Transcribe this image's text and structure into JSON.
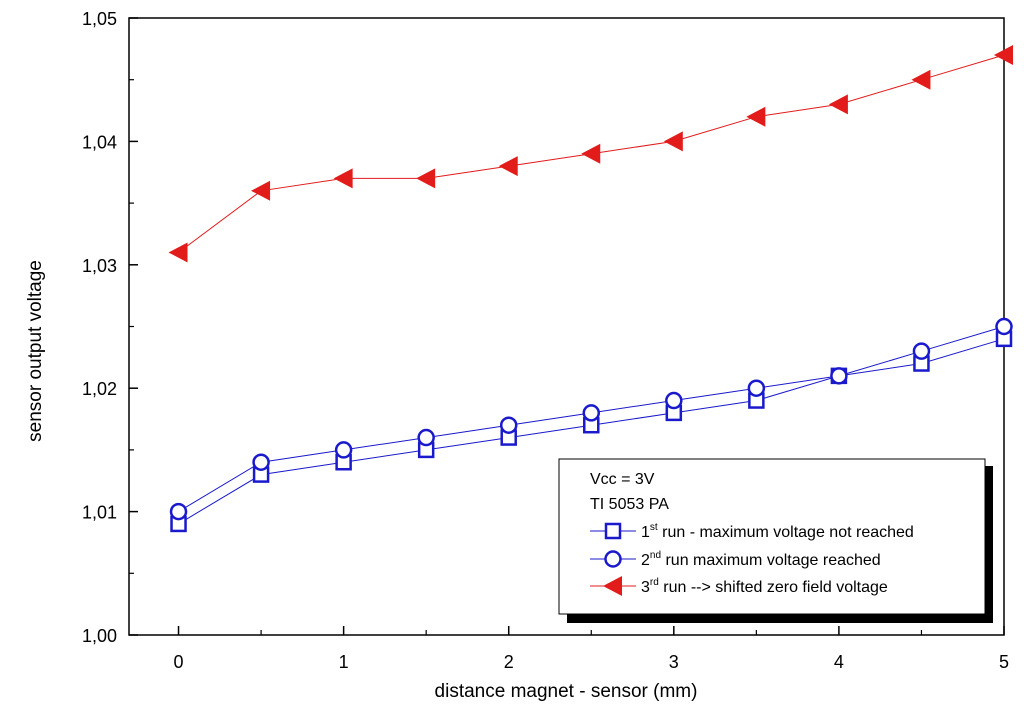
{
  "chart_data": {
    "type": "line",
    "xlabel": "distance magnet - sensor (mm)",
    "ylabel": "sensor output voltage",
    "xlim": [
      -0.3,
      5
    ],
    "ylim": [
      1.0,
      1.05
    ],
    "x_ticks": [
      0,
      1,
      2,
      3,
      4,
      5
    ],
    "x_tick_labels": [
      "0",
      "1",
      "2",
      "3",
      "4",
      "5"
    ],
    "y_ticks": [
      1.0,
      1.01,
      1.02,
      1.03,
      1.04,
      1.05
    ],
    "y_tick_labels": [
      "1,00",
      "1,01",
      "1,02",
      "1,03",
      "1,04",
      "1,05"
    ],
    "grid": false,
    "legend_position": "bottom-right",
    "legend": {
      "header_lines": [
        "Vcc = 3V",
        "TI 5053 PA"
      ],
      "entries": [
        {
          "pre": "1",
          "sup": "st",
          "post": " run - maximum voltage not reached"
        },
        {
          "pre": "2",
          "sup": "nd",
          "post": " run maximum voltage reached"
        },
        {
          "pre": "3",
          "sup": "rd",
          "post": " run --> shifted zero field voltage"
        }
      ]
    },
    "x": [
      0,
      0.5,
      1,
      1.5,
      2,
      2.5,
      3,
      3.5,
      4,
      4.5,
      5
    ],
    "series": [
      {
        "marker": "square-open",
        "color": "#1a1acc",
        "values": [
          1.009,
          1.013,
          1.014,
          1.015,
          1.016,
          1.017,
          1.018,
          1.019,
          1.021,
          1.022,
          1.024
        ]
      },
      {
        "marker": "circle-open",
        "color": "#1a1acc",
        "values": [
          1.01,
          1.014,
          1.015,
          1.016,
          1.017,
          1.018,
          1.019,
          1.02,
          1.021,
          1.023,
          1.025
        ]
      },
      {
        "marker": "triangle-left-filled",
        "color": "#e21b1b",
        "values": [
          1.031,
          1.036,
          1.037,
          1.037,
          1.038,
          1.039,
          1.04,
          1.042,
          1.043,
          1.045,
          1.047
        ]
      }
    ]
  }
}
